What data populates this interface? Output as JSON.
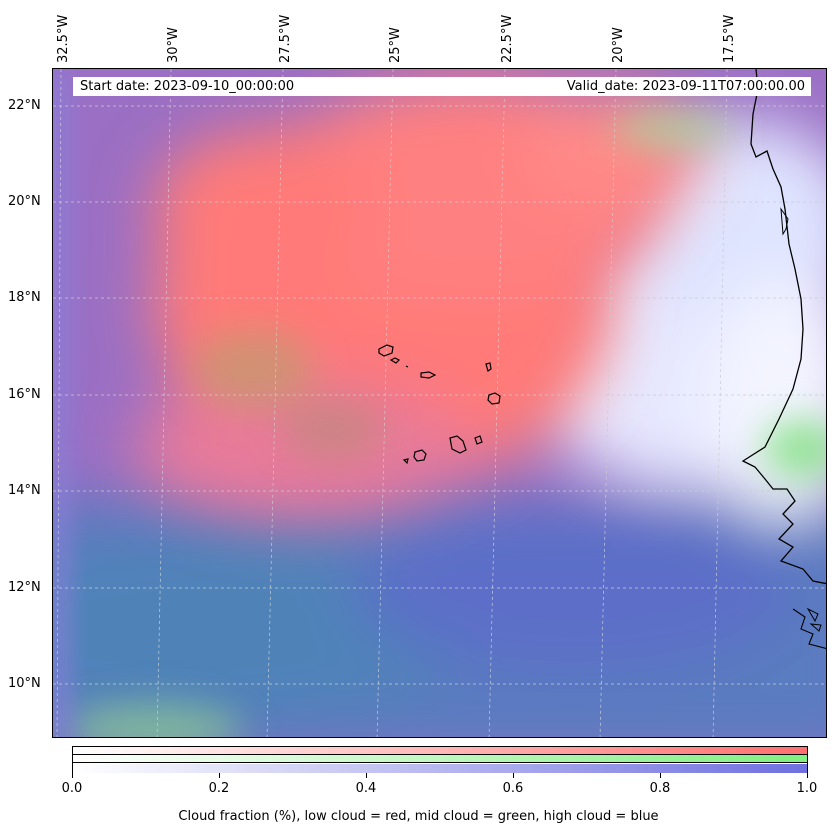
{
  "map": {
    "start_date": "Start date: 2023-09-10_00:00:00",
    "valid_date": "Valid_date: 2023-09-11T07:00:00.00",
    "lon_labels": [
      "32.5°W",
      "30°W",
      "27.5°W",
      "25°W",
      "22.5°W",
      "20°W",
      "17.5°W"
    ],
    "lat_labels": [
      "22°N",
      "20°N",
      "18°N",
      "16°N",
      "14°N",
      "12°N",
      "10°N"
    ],
    "grid": true,
    "colors": {
      "low_cloud": "#ff6f6f",
      "mid_cloud": "#7fe07f",
      "high_cloud": "#7a6fe0",
      "coastline": "#000000",
      "background": "#ffffff"
    },
    "features": [
      "cape-verde-islands",
      "west-africa-coastline"
    ]
  },
  "colorbar": {
    "ticks": [
      "0.0",
      "0.2",
      "0.4",
      "0.6",
      "0.8",
      "1.0"
    ],
    "caption": "Cloud fraction (%), low cloud = red, mid cloud = green, high cloud = blue",
    "rows": [
      {
        "name": "low",
        "color": "#ff6f6f"
      },
      {
        "name": "mid",
        "color": "#80f080"
      },
      {
        "name": "high",
        "color": "#6f6fe0"
      }
    ]
  }
}
